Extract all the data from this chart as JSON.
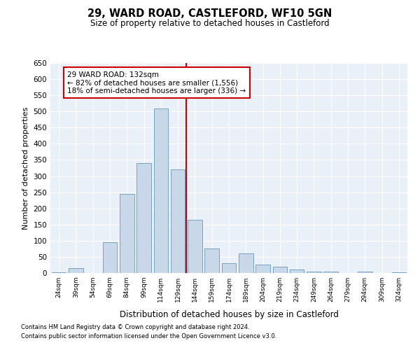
{
  "title1": "29, WARD ROAD, CASTLEFORD, WF10 5GN",
  "title2": "Size of property relative to detached houses in Castleford",
  "xlabel": "Distribution of detached houses by size in Castleford",
  "ylabel": "Number of detached properties",
  "categories": [
    "24sqm",
    "39sqm",
    "54sqm",
    "69sqm",
    "84sqm",
    "99sqm",
    "114sqm",
    "129sqm",
    "144sqm",
    "159sqm",
    "174sqm",
    "189sqm",
    "204sqm",
    "219sqm",
    "234sqm",
    "249sqm",
    "264sqm",
    "279sqm",
    "294sqm",
    "309sqm",
    "324sqm"
  ],
  "values": [
    2,
    15,
    0,
    95,
    245,
    340,
    510,
    320,
    165,
    75,
    30,
    60,
    25,
    20,
    10,
    5,
    5,
    0,
    5,
    0,
    2
  ],
  "bar_color": "#c8d8e8",
  "bar_edge_color": "#6699bb",
  "vline_color": "#cc0000",
  "annotation_line1": "29 WARD ROAD: 132sqm",
  "annotation_line2": "← 82% of detached houses are smaller (1,556)",
  "annotation_line3": "18% of semi-detached houses are larger (336) →",
  "annotation_box_color": "#ffffff",
  "annotation_box_edge": "#cc0000",
  "ylim": [
    0,
    650
  ],
  "yticks": [
    0,
    50,
    100,
    150,
    200,
    250,
    300,
    350,
    400,
    450,
    500,
    550,
    600,
    650
  ],
  "bg_color": "#eaf0f8",
  "grid_color": "#ffffff",
  "footer1": "Contains HM Land Registry data © Crown copyright and database right 2024.",
  "footer2": "Contains public sector information licensed under the Open Government Licence v3.0."
}
